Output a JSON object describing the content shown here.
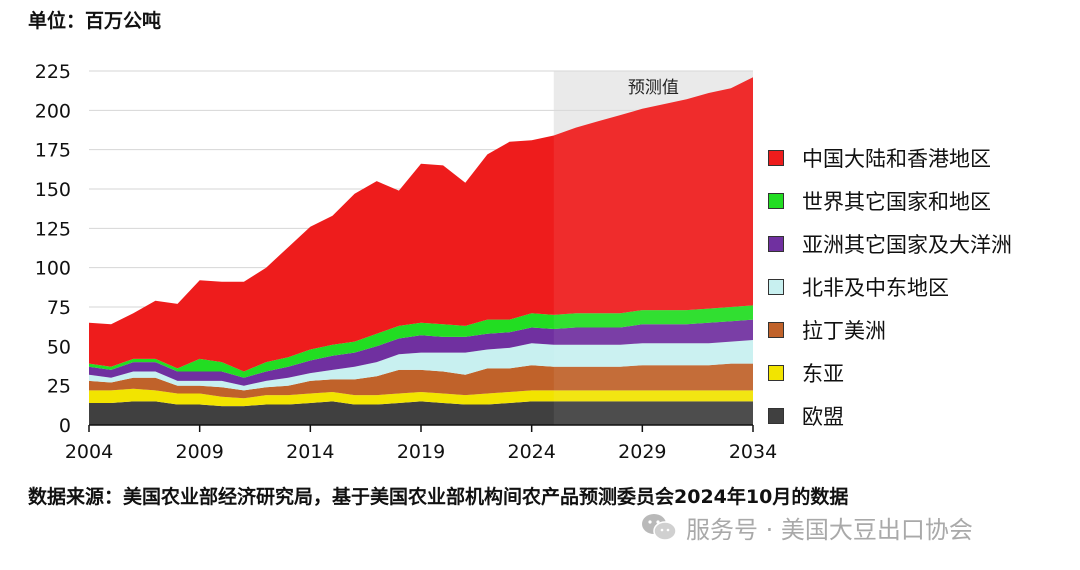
{
  "unit_label": "单位：百万公吨",
  "source_text": "数据来源：美国农业部经济研究局，基于美国农业部机构间农产品预测委员会2024年10月的数据",
  "watermark": {
    "icon": "wechat-icon",
    "text": "服务号 · 美国大豆出口协会"
  },
  "chart_data": {
    "type": "area",
    "stacked": true,
    "forecast_label": "预测值",
    "forecast_start": 2025,
    "xlim": [
      2004,
      2034
    ],
    "ylim": [
      0,
      225
    ],
    "x_ticks": [
      2004,
      2009,
      2014,
      2019,
      2024,
      2029,
      2034
    ],
    "y_ticks": [
      0,
      25,
      50,
      75,
      100,
      125,
      150,
      175,
      200,
      225
    ],
    "grid": "horizontal",
    "legend_position": "right",
    "x": [
      2004,
      2005,
      2006,
      2007,
      2008,
      2009,
      2010,
      2011,
      2012,
      2013,
      2014,
      2015,
      2016,
      2017,
      2018,
      2019,
      2020,
      2021,
      2022,
      2023,
      2024,
      2025,
      2026,
      2027,
      2028,
      2029,
      2030,
      2031,
      2032,
      2033,
      2034
    ],
    "series": [
      {
        "name": "欧盟",
        "color": "#404040",
        "values": [
          14,
          14,
          15,
          15,
          13,
          13,
          12,
          12,
          13,
          13,
          14,
          15,
          13,
          13,
          14,
          15,
          14,
          13,
          13,
          14,
          15,
          15,
          15,
          15,
          15,
          15,
          15,
          15,
          15,
          15,
          15
        ]
      },
      {
        "name": "东亚",
        "color": "#f2e400",
        "values": [
          8,
          8,
          8,
          7,
          7,
          7,
          6,
          5,
          6,
          6,
          6,
          6,
          6,
          6,
          6,
          6,
          6,
          6,
          7,
          7,
          7,
          7,
          7,
          7,
          7,
          7,
          7,
          7,
          7,
          7,
          7
        ]
      },
      {
        "name": "拉丁美洲",
        "color": "#c0622a",
        "values": [
          6,
          5,
          7,
          8,
          5,
          5,
          6,
          5,
          5,
          6,
          8,
          8,
          10,
          12,
          15,
          14,
          14,
          13,
          16,
          15,
          16,
          15,
          15,
          15,
          15,
          16,
          16,
          16,
          16,
          17,
          17
        ]
      },
      {
        "name": "北非及中东地区",
        "color": "#c8f0f0",
        "values": [
          4,
          3,
          4,
          4,
          3,
          3,
          4,
          3,
          4,
          5,
          5,
          6,
          8,
          9,
          10,
          11,
          12,
          14,
          12,
          13,
          14,
          14,
          14,
          14,
          14,
          14,
          14,
          14,
          14,
          14,
          15
        ]
      },
      {
        "name": "亚洲其它国家及大洋洲",
        "color": "#7030a0",
        "values": [
          5,
          5,
          6,
          6,
          6,
          6,
          6,
          5,
          6,
          7,
          8,
          9,
          9,
          10,
          10,
          11,
          10,
          10,
          10,
          10,
          10,
          10,
          11,
          11,
          11,
          12,
          12,
          12,
          13,
          13,
          13
        ]
      },
      {
        "name": "世界其它国家和地区",
        "color": "#22dd22",
        "values": [
          2,
          2,
          2,
          2,
          2,
          8,
          6,
          4,
          6,
          6,
          7,
          7,
          7,
          8,
          8,
          8,
          8,
          7,
          9,
          8,
          9,
          9,
          9,
          9,
          9,
          9,
          9,
          9,
          9,
          9,
          9
        ]
      },
      {
        "name": "中国大陆和香港地区",
        "color": "#ee1c1c",
        "values": [
          26,
          27,
          29,
          37,
          41,
          50,
          51,
          57,
          60,
          70,
          78,
          82,
          94,
          97,
          86,
          101,
          101,
          91,
          105,
          113,
          110,
          114,
          118,
          122,
          126,
          128,
          131,
          134,
          137,
          139,
          145
        ]
      }
    ]
  }
}
